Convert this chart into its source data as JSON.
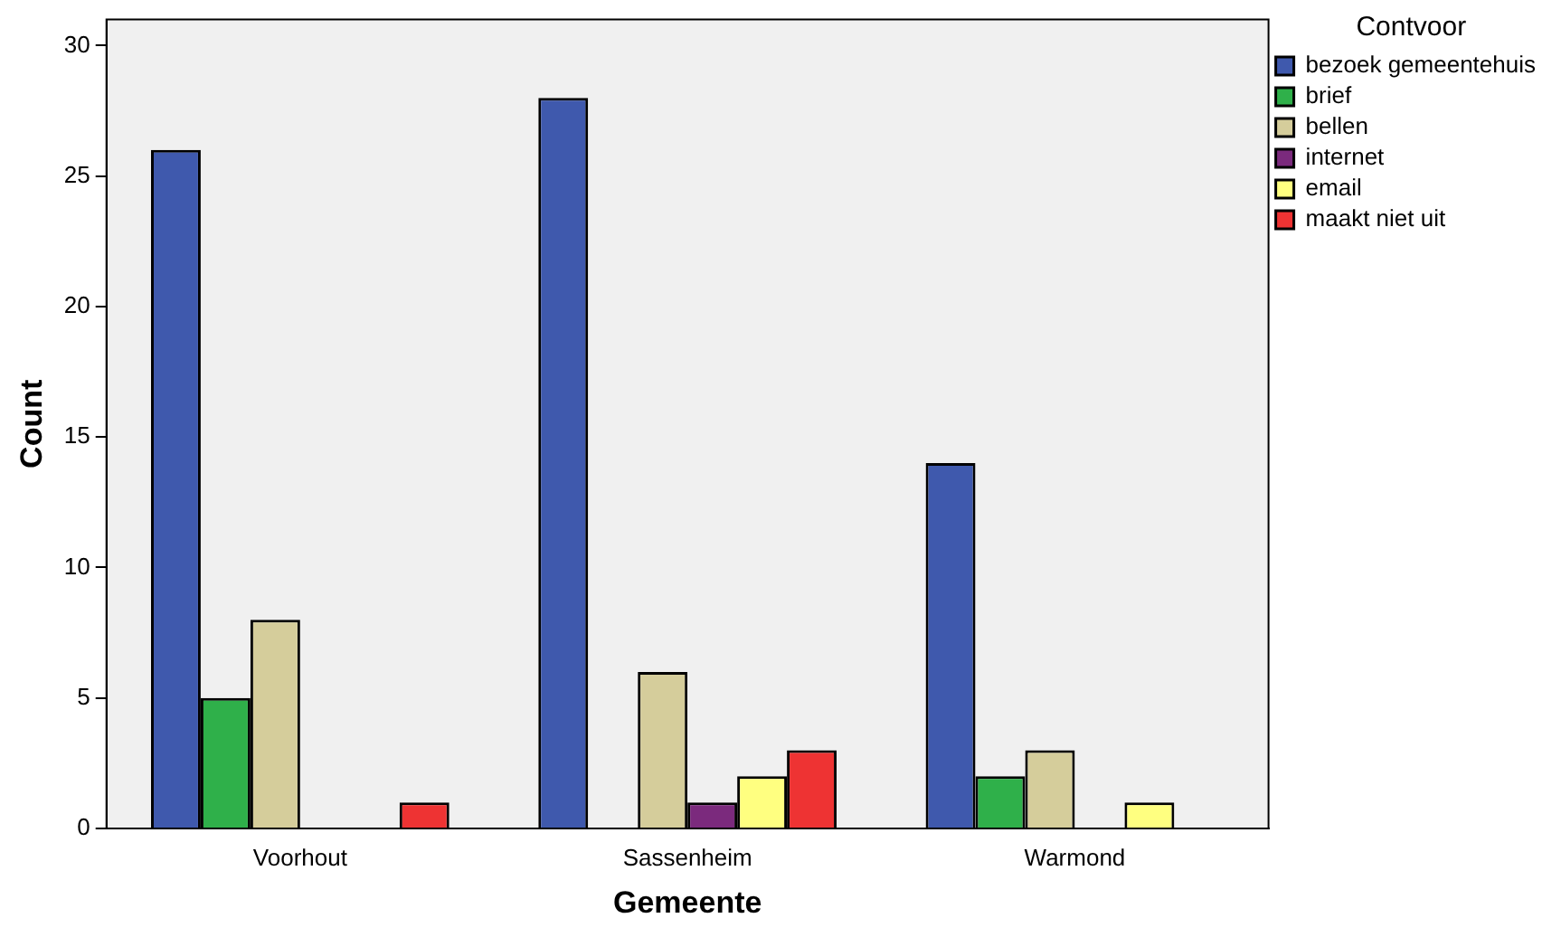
{
  "chart_data": {
    "type": "bar",
    "xlabel": "Gemeente",
    "ylabel": "Count",
    "legend_title": "Contvoor",
    "legend": "top right",
    "categories": [
      "Voorhout",
      "Sassenheim",
      "Warmond"
    ],
    "series": [
      {
        "name": "bezoek gemeentehuis",
        "color": "#3f59ad",
        "values": [
          26,
          28,
          14
        ]
      },
      {
        "name": "brief",
        "color": "#2fb04a",
        "values": [
          5,
          null,
          2
        ]
      },
      {
        "name": "bellen",
        "color": "#d5cd9b",
        "values": [
          8,
          6,
          3
        ]
      },
      {
        "name": "internet",
        "color": "#7b2a7d",
        "values": [
          null,
          1,
          null
        ]
      },
      {
        "name": "email",
        "color": "#ffff80",
        "values": [
          null,
          2,
          1
        ]
      },
      {
        "name": "maakt niet uit",
        "color": "#ee3333",
        "values": [
          1,
          3,
          null
        ]
      }
    ],
    "ylim": [
      0,
      31
    ],
    "yticks": [
      0,
      5,
      10,
      15,
      20,
      25,
      30
    ],
    "grid": false
  }
}
